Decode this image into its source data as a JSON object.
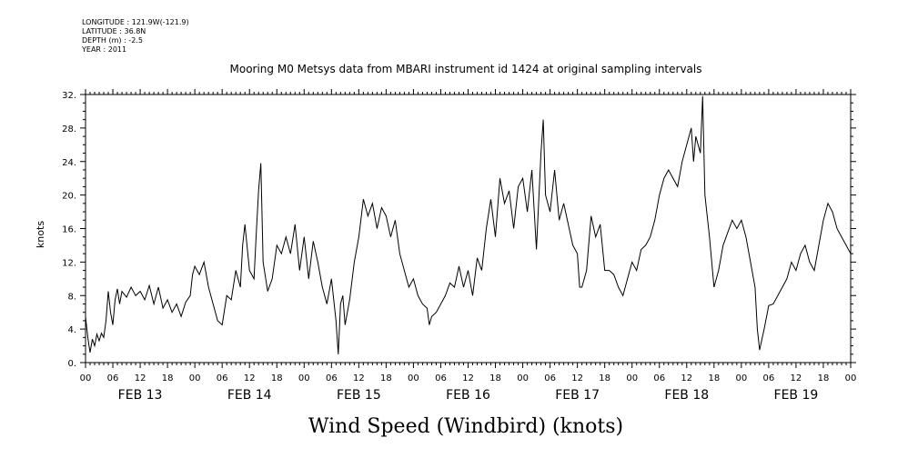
{
  "meta": {
    "longitude": "LONGITUDE : 121.9W(-121.9)",
    "latitude": "LATITUDE : 36.8N",
    "depth": "DEPTH (m) : -2.5",
    "year": "YEAR : 2011"
  },
  "chart_data": {
    "type": "line",
    "title": "Mooring M0 Metsys data from MBARI instrument id 1424 at original sampling intervals",
    "xlabel": "Wind Speed (Windbird) (knots)",
    "ylabel": "knots",
    "ylim": [
      0,
      32
    ],
    "xlim": [
      0,
      168
    ],
    "y_ticks": [
      "0.",
      "4.",
      "8.",
      "12.",
      "16.",
      "20.",
      "24.",
      "28.",
      "32."
    ],
    "x_hour_ticks": [
      "00",
      "06",
      "12",
      "18",
      "00",
      "06",
      "12",
      "18",
      "00",
      "06",
      "12",
      "18",
      "00",
      "06",
      "12",
      "18",
      "00",
      "06",
      "12",
      "18",
      "00",
      "06",
      "12",
      "18",
      "00",
      "06",
      "12",
      "18",
      "00"
    ],
    "x_day_labels": [
      "FEB 13",
      "FEB 14",
      "FEB 15",
      "FEB 16",
      "FEB 17",
      "FEB 18",
      "FEB 19"
    ],
    "grid": false,
    "series": [
      {
        "color": "#000000",
        "points": [
          [
            0,
            5.5
          ],
          [
            0.5,
            3
          ],
          [
            1,
            1.2
          ],
          [
            1.5,
            2.8
          ],
          [
            2,
            2
          ],
          [
            2.5,
            3.4
          ],
          [
            3,
            2.6
          ],
          [
            3.5,
            3.5
          ],
          [
            4,
            3
          ],
          [
            4.5,
            5
          ],
          [
            5,
            8.5
          ],
          [
            5.5,
            6
          ],
          [
            6,
            4.5
          ],
          [
            6.5,
            7.5
          ],
          [
            7,
            8.8
          ],
          [
            7.5,
            7
          ],
          [
            8,
            8.5
          ],
          [
            9,
            7.8
          ],
          [
            10,
            9
          ],
          [
            11,
            8
          ],
          [
            12,
            8.5
          ],
          [
            13,
            7.5
          ],
          [
            14,
            9.2
          ],
          [
            15,
            7
          ],
          [
            16,
            9
          ],
          [
            17,
            6.5
          ],
          [
            18,
            7.5
          ],
          [
            19,
            6
          ],
          [
            20,
            7
          ],
          [
            21,
            5.5
          ],
          [
            22,
            7.2
          ],
          [
            23,
            8
          ],
          [
            23.5,
            10.5
          ],
          [
            24,
            11.5
          ],
          [
            25,
            10.5
          ],
          [
            26,
            12
          ],
          [
            27,
            9
          ],
          [
            28,
            7
          ],
          [
            29,
            5
          ],
          [
            30,
            4.5
          ],
          [
            31,
            8
          ],
          [
            32,
            7.5
          ],
          [
            33,
            11
          ],
          [
            34,
            9
          ],
          [
            34.5,
            14
          ],
          [
            35,
            16.5
          ],
          [
            36,
            11
          ],
          [
            37,
            10
          ],
          [
            37.5,
            15.5
          ],
          [
            38,
            20.5
          ],
          [
            38.5,
            23.8
          ],
          [
            39,
            12
          ],
          [
            40,
            8.5
          ],
          [
            41,
            10
          ],
          [
            42,
            14
          ],
          [
            43,
            13
          ],
          [
            44,
            15
          ],
          [
            45,
            13
          ],
          [
            46,
            16.5
          ],
          [
            47,
            11
          ],
          [
            48,
            15
          ],
          [
            49,
            10
          ],
          [
            50,
            14.5
          ],
          [
            51,
            12
          ],
          [
            52,
            9
          ],
          [
            53,
            7
          ],
          [
            54,
            10
          ],
          [
            55,
            5
          ],
          [
            55.5,
            1
          ],
          [
            56,
            7
          ],
          [
            56.5,
            8
          ],
          [
            57,
            4.5
          ],
          [
            58,
            7.5
          ],
          [
            59,
            12
          ],
          [
            60,
            15
          ],
          [
            61,
            19.5
          ],
          [
            62,
            17.5
          ],
          [
            63,
            19
          ],
          [
            64,
            16
          ],
          [
            65,
            18.5
          ],
          [
            66,
            17.5
          ],
          [
            67,
            15
          ],
          [
            68,
            17
          ],
          [
            69,
            13
          ],
          [
            70,
            11
          ],
          [
            71,
            9
          ],
          [
            72,
            10
          ],
          [
            73,
            8
          ],
          [
            74,
            7
          ],
          [
            75,
            6.5
          ],
          [
            75.5,
            4.5
          ],
          [
            76,
            5.5
          ],
          [
            77,
            6
          ],
          [
            78,
            7
          ],
          [
            79,
            8
          ],
          [
            80,
            9.5
          ],
          [
            81,
            9
          ],
          [
            82,
            11.5
          ],
          [
            83,
            9
          ],
          [
            84,
            11
          ],
          [
            85,
            8
          ],
          [
            86,
            12.5
          ],
          [
            87,
            11
          ],
          [
            88,
            16
          ],
          [
            89,
            19.5
          ],
          [
            90,
            15
          ],
          [
            91,
            22
          ],
          [
            92,
            19
          ],
          [
            93,
            20.5
          ],
          [
            94,
            16
          ],
          [
            95,
            21
          ],
          [
            96,
            22
          ],
          [
            97,
            18
          ],
          [
            98,
            23
          ],
          [
            99,
            13.5
          ],
          [
            100,
            25
          ],
          [
            100.5,
            29
          ],
          [
            101,
            20
          ],
          [
            102,
            18
          ],
          [
            103,
            23
          ],
          [
            104,
            17
          ],
          [
            105,
            19
          ],
          [
            106,
            16.5
          ],
          [
            107,
            14
          ],
          [
            108,
            13
          ],
          [
            108.5,
            9
          ],
          [
            109,
            9
          ],
          [
            110,
            11
          ],
          [
            111,
            17.5
          ],
          [
            112,
            15
          ],
          [
            113,
            16.5
          ],
          [
            114,
            11
          ],
          [
            115,
            11
          ],
          [
            116,
            10.5
          ],
          [
            117,
            9
          ],
          [
            118,
            8
          ],
          [
            119,
            10
          ],
          [
            120,
            12
          ],
          [
            121,
            11
          ],
          [
            122,
            13.5
          ],
          [
            123,
            14
          ],
          [
            124,
            15
          ],
          [
            125,
            17
          ],
          [
            126,
            20
          ],
          [
            127,
            22
          ],
          [
            128,
            23
          ],
          [
            129,
            22
          ],
          [
            130,
            21
          ],
          [
            131,
            24
          ],
          [
            132,
            26
          ],
          [
            133,
            28
          ],
          [
            133.5,
            24
          ],
          [
            134,
            27
          ],
          [
            135,
            25
          ],
          [
            135.5,
            31.8
          ],
          [
            136,
            20
          ],
          [
            137,
            15
          ],
          [
            138,
            9
          ],
          [
            139,
            11
          ],
          [
            140,
            14
          ],
          [
            141,
            15.5
          ],
          [
            142,
            17
          ],
          [
            143,
            16
          ],
          [
            144,
            17
          ],
          [
            145,
            15
          ],
          [
            146,
            12
          ],
          [
            147,
            9
          ],
          [
            147.5,
            4
          ],
          [
            148,
            1.5
          ],
          [
            149,
            4
          ],
          [
            150,
            6.8
          ],
          [
            151,
            7
          ],
          [
            152,
            8
          ],
          [
            153,
            9
          ],
          [
            154,
            10
          ],
          [
            155,
            12
          ],
          [
            156,
            11
          ],
          [
            157,
            13
          ],
          [
            158,
            14
          ],
          [
            159,
            12
          ],
          [
            160,
            11
          ],
          [
            161,
            14
          ],
          [
            162,
            17
          ],
          [
            163,
            19
          ],
          [
            164,
            18
          ],
          [
            165,
            16
          ],
          [
            166,
            15
          ],
          [
            167,
            14
          ],
          [
            168,
            13
          ]
        ]
      }
    ]
  }
}
